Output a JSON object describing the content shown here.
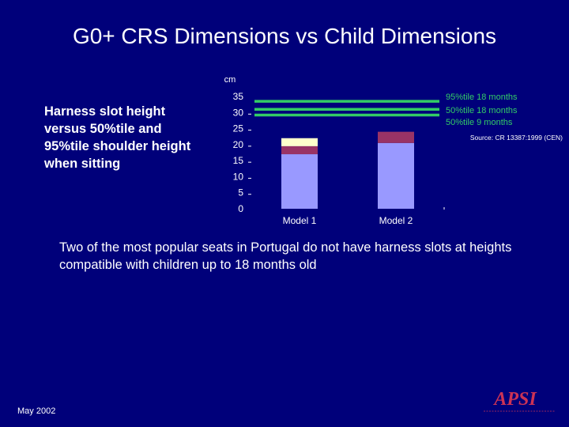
{
  "slide": {
    "title": "G0+ CRS Dimensions vs Child Dimensions",
    "side_note": "Harness slot height\nversus 50%tile and\n95%tile shoulder height\nwhen sitting",
    "conclusion": "Two of the most popular seats in Portugal do not have harness slots at heights compatible with children up to 18 months old",
    "footer_date": "May 2002",
    "logo_text": "APSI"
  },
  "colors": {
    "background": "#00007a",
    "bar_lower": "#9999ff",
    "bar_middle": "#993366",
    "bar_upper": "#ffffcc",
    "reference_lines": "#33cc66",
    "legend_text": "#33cc66",
    "text": "#ffffff"
  },
  "chart_data": {
    "type": "bar",
    "stacked": true,
    "ylabel": "cm",
    "ylim": [
      0,
      35
    ],
    "yticks": [
      "0",
      "5",
      "10",
      "15",
      "20",
      "25",
      "30",
      "35"
    ],
    "categories": [
      "Model 1",
      "Model 2"
    ],
    "series": [
      {
        "values": [
          17,
          20.5
        ]
      },
      {
        "values": [
          2.5,
          3.5
        ]
      },
      {
        "values": [
          2.5,
          0
        ]
      }
    ],
    "reference_lines": [
      {
        "label": "95%tile  18 months",
        "value": 33.5
      },
      {
        "label": "50%tile  18 months",
        "value": 31
      },
      {
        "label": "50%tile   9 months",
        "value": 29.2
      }
    ],
    "source_note": "Source: CR 13387:1999 (CEN)"
  }
}
